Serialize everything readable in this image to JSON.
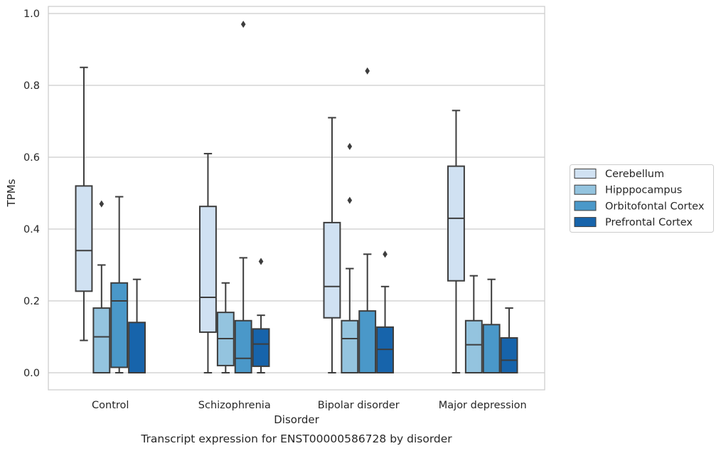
{
  "chart_data": {
    "type": "box",
    "title": "Transcript expression for ENST00000586728 by disorder",
    "xlabel": "Disorder",
    "ylabel": "TPMs",
    "ylim": [
      -0.045,
      1.02
    ],
    "yticks": [
      0.0,
      0.2,
      0.4,
      0.6,
      0.8,
      1.0
    ],
    "ytick_labels": [
      "0.0",
      "0.2",
      "0.4",
      "0.6",
      "0.8",
      "1.0"
    ],
    "grid": true,
    "legend_placement": "right, outside plot",
    "categories": [
      "Control",
      "Schizophrenia",
      "Bipolar disorder",
      "Major depression"
    ],
    "series": [
      {
        "name": "Cerebellum",
        "color": "#d0e1f2",
        "boxes": [
          {
            "whislo": 0.09,
            "q1": 0.227,
            "med": 0.34,
            "q3": 0.52,
            "whishi": 0.85,
            "fliers": []
          },
          {
            "whislo": 0.0,
            "q1": 0.113,
            "med": 0.21,
            "q3": 0.463,
            "whishi": 0.61,
            "fliers": []
          },
          {
            "whislo": 0.0,
            "q1": 0.153,
            "med": 0.24,
            "q3": 0.418,
            "whishi": 0.71,
            "fliers": []
          },
          {
            "whislo": 0.0,
            "q1": 0.256,
            "med": 0.43,
            "q3": 0.575,
            "whishi": 0.73,
            "fliers": []
          }
        ]
      },
      {
        "name": "Hipppocampus",
        "color": "#94c4df",
        "boxes": [
          {
            "whislo": 0.0,
            "q1": 0.0,
            "med": 0.1,
            "q3": 0.18,
            "whishi": 0.3,
            "fliers": [
              0.47
            ]
          },
          {
            "whislo": 0.0,
            "q1": 0.02,
            "med": 0.095,
            "q3": 0.168,
            "whishi": 0.25,
            "fliers": []
          },
          {
            "whislo": 0.0,
            "q1": 0.0,
            "med": 0.095,
            "q3": 0.145,
            "whishi": 0.29,
            "fliers": [
              0.48,
              0.63
            ]
          },
          {
            "whislo": 0.0,
            "q1": 0.0,
            "med": 0.078,
            "q3": 0.145,
            "whishi": 0.27,
            "fliers": []
          }
        ]
      },
      {
        "name": "Orbitofontal Cortex",
        "color": "#4a98c9",
        "boxes": [
          {
            "whislo": 0.0,
            "q1": 0.015,
            "med": 0.2,
            "q3": 0.25,
            "whishi": 0.49,
            "fliers": []
          },
          {
            "whislo": 0.0,
            "q1": 0.0,
            "med": 0.04,
            "q3": 0.145,
            "whishi": 0.32,
            "fliers": [
              0.97
            ]
          },
          {
            "whislo": 0.0,
            "q1": 0.0,
            "med": 0.0,
            "q3": 0.172,
            "whishi": 0.33,
            "fliers": [
              0.84
            ]
          },
          {
            "whislo": 0.0,
            "q1": 0.0,
            "med": 0.0,
            "q3": 0.134,
            "whishi": 0.26,
            "fliers": []
          }
        ]
      },
      {
        "name": "Prefrontal Cortex",
        "color": "#1764ab",
        "boxes": [
          {
            "whislo": 0.0,
            "q1": 0.0,
            "med": 0.0,
            "q3": 0.14,
            "whishi": 0.26,
            "fliers": []
          },
          {
            "whislo": 0.0,
            "q1": 0.018,
            "med": 0.08,
            "q3": 0.122,
            "whishi": 0.16,
            "fliers": [
              0.31
            ]
          },
          {
            "whislo": 0.0,
            "q1": 0.0,
            "med": 0.065,
            "q3": 0.127,
            "whishi": 0.24,
            "fliers": [
              0.33
            ]
          },
          {
            "whislo": 0.0,
            "q1": 0.0,
            "med": 0.035,
            "q3": 0.097,
            "whishi": 0.18,
            "fliers": []
          }
        ]
      }
    ]
  }
}
